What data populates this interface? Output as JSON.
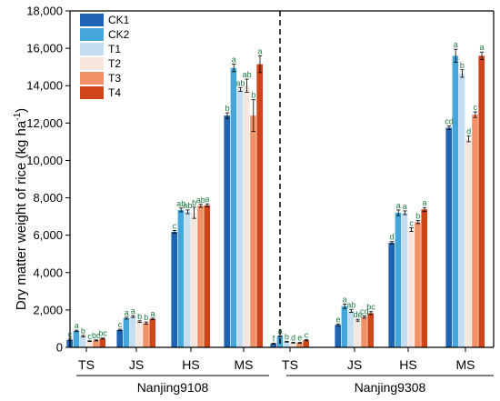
{
  "chart_data": {
    "type": "bar",
    "ylabel": "Dry matter weight of rice (kg ha",
    "ylabel_sup": "-1",
    "ylabel_close": ")",
    "ylim": [
      0,
      18000
    ],
    "yticks": [
      "0",
      "2,000",
      "4,000",
      "6,000",
      "8,000",
      "10,000",
      "12,000",
      "14,000",
      "16,000",
      "18,000"
    ],
    "grid": false,
    "legend_position": "top-left",
    "groups": [
      {
        "name": "Nanjing9108",
        "stages": [
          {
            "stage": "TS",
            "values": [
              400,
              880,
              600,
              330,
              370,
              470
            ],
            "errors": [
              40,
              40,
              40,
              20,
              25,
              30
            ],
            "letters": [
              "c",
              "a",
              "b",
              "c",
              "bc",
              "bc"
            ]
          },
          {
            "stage": "JS",
            "values": [
              930,
              1560,
              1650,
              1380,
              1300,
              1520
            ],
            "errors": [
              40,
              50,
              50,
              40,
              60,
              40
            ],
            "letters": [
              "c",
              "a",
              "a",
              "b",
              "b",
              "a"
            ]
          },
          {
            "stage": "HS",
            "values": [
              6180,
              7350,
              7250,
              7200,
              7570,
              7600
            ],
            "errors": [
              80,
              100,
              100,
              300,
              80,
              80
            ],
            "letters": [
              "c",
              "ab",
              "ab",
              "b",
              "ab",
              "a"
            ]
          },
          {
            "stage": "MS",
            "values": [
              12400,
              14950,
              13800,
              14000,
              12400,
              15150
            ],
            "errors": [
              150,
              200,
              100,
              350,
              850,
              450
            ],
            "letters": [
              "b",
              "a",
              "ab",
              "ab",
              "b",
              "a"
            ]
          }
        ]
      },
      {
        "name": "Nanjing9308",
        "stages": [
          {
            "stage": "TS",
            "values": [
              200,
              600,
              300,
              250,
              240,
              380
            ],
            "errors": [
              20,
              30,
              20,
              20,
              20,
              30
            ],
            "letters": [
              "f",
              "a",
              "b",
              "d",
              "e",
              "c"
            ]
          },
          {
            "stage": "JS",
            "values": [
              1200,
              2200,
              1950,
              1450,
              1620,
              1830
            ],
            "errors": [
              50,
              120,
              80,
              50,
              60,
              80
            ],
            "letters": [
              "e",
              "a",
              "ab",
              "de",
              "cd",
              "bc"
            ]
          },
          {
            "stage": "HS",
            "values": [
              5600,
              7200,
              7200,
              6300,
              6700,
              7380
            ],
            "errors": [
              60,
              150,
              100,
              100,
              80,
              100
            ],
            "letters": [
              "d",
              "a",
              "a",
              "c",
              "b",
              "a"
            ]
          },
          {
            "stage": "MS",
            "values": [
              11750,
              15600,
              14650,
              11150,
              12450,
              15600
            ],
            "errors": [
              100,
              350,
              200,
              150,
              150,
              200
            ],
            "letters": [
              "cd",
              "a",
              "b",
              "d",
              "c",
              "a"
            ]
          }
        ]
      }
    ],
    "series": [
      {
        "name": "CK1",
        "color": "#1f63b3"
      },
      {
        "name": "CK2",
        "color": "#45a6db"
      },
      {
        "name": "T1",
        "color": "#c4ddf0"
      },
      {
        "name": "T2",
        "color": "#f6e6de"
      },
      {
        "name": "T3",
        "color": "#f29068"
      },
      {
        "name": "T4",
        "color": "#cf4419"
      }
    ],
    "letter_color": "#1b7a3e"
  }
}
